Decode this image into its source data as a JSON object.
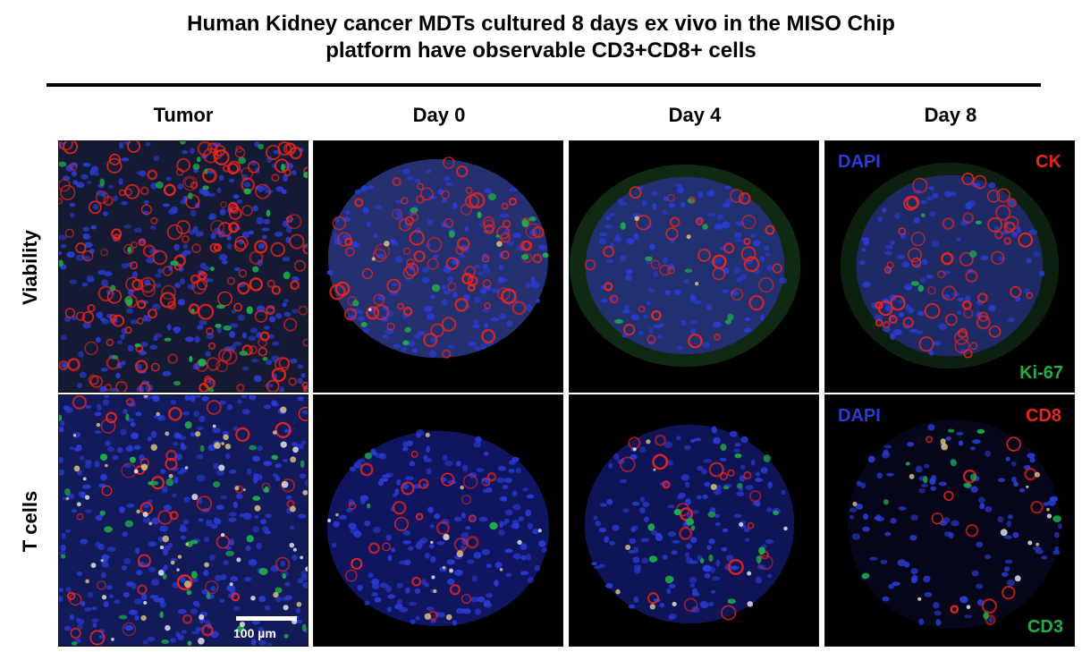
{
  "figure": {
    "title_line1": "Human Kidney cancer MDTs cultured 8 days ex vivo in the MISO Chip",
    "title_line2": "platform have observable CD3+CD8+ cells",
    "columns": [
      "Tumor",
      "Day 0",
      "Day 4",
      "Day 8"
    ],
    "rows": [
      "Viability",
      "T cells"
    ],
    "viability_labels": {
      "dapi": "DAPI",
      "ck": "CK",
      "ki67": "Ki-67"
    },
    "tcell_labels": {
      "dapi": "DAPI",
      "cd8": "CD8",
      "cd3": "CD3"
    },
    "scale_bar": "100 µm"
  },
  "colors": {
    "dapi": "#2a3cd8",
    "ck": "#e8261e",
    "ki67": "#1fae4a",
    "cd8": "#e8261e",
    "cd3": "#1fae4a",
    "background": "#000000"
  }
}
